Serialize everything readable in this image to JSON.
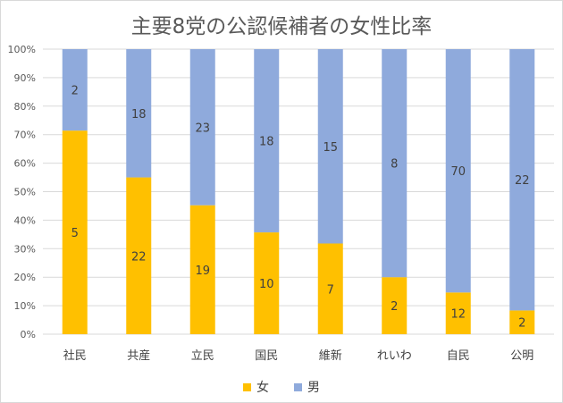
{
  "chart_data": {
    "type": "bar",
    "stacked": "percent",
    "title": "主要8党の公認候補者の女性比率",
    "categories": [
      "社民",
      "共産",
      "立民",
      "国民",
      "維新",
      "れいわ",
      "自民",
      "公明"
    ],
    "series": [
      {
        "name": "女",
        "color": "#ffc000",
        "values": [
          5,
          22,
          19,
          10,
          7,
          2,
          12,
          2
        ]
      },
      {
        "name": "男",
        "color": "#8faadc",
        "values": [
          2,
          18,
          23,
          18,
          15,
          8,
          70,
          22
        ]
      }
    ],
    "ylim": [
      0,
      100
    ],
    "yticks": [
      "0%",
      "10%",
      "20%",
      "30%",
      "40%",
      "50%",
      "60%",
      "70%",
      "80%",
      "90%",
      "100%"
    ],
    "grid": true,
    "legend": "bottom"
  }
}
